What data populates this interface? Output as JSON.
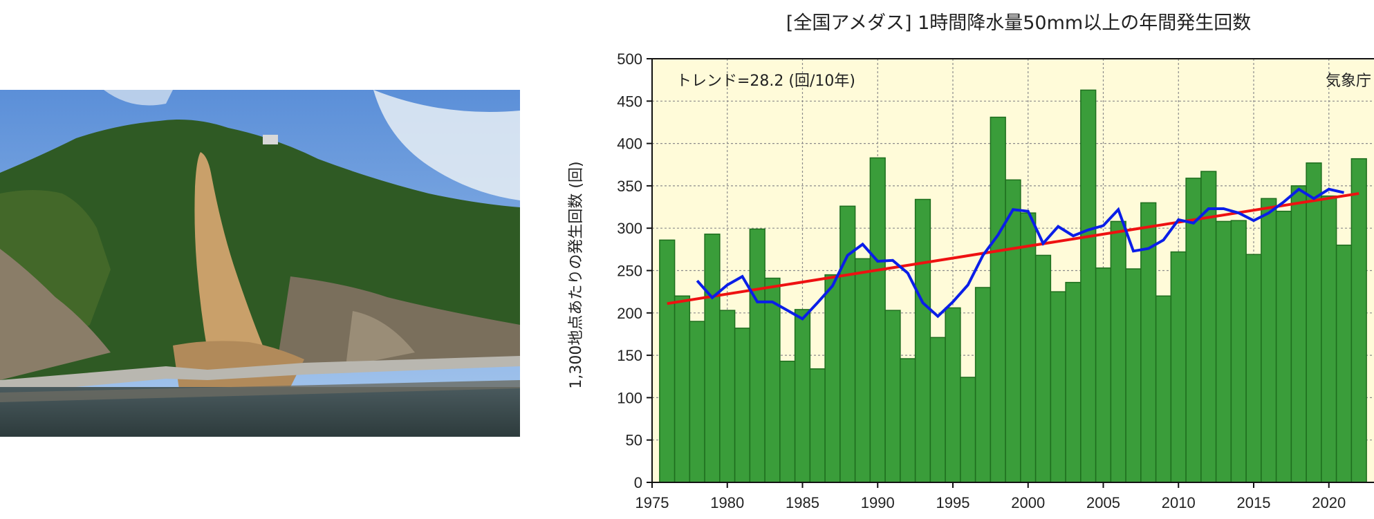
{
  "photo": {
    "description_icon": "landslide-photo"
  },
  "chart_data": {
    "type": "bar",
    "title": "[全国アメダス] 1時間降水量50mm以上の年間発生回数",
    "ylabel": "1,300地点あたりの発生回数 (回)",
    "xlabel": "",
    "trend_label": "トレンド=28.2 (回/10年)",
    "source_label": "気象庁",
    "ylim": [
      0,
      500
    ],
    "xlim": [
      1975,
      2023
    ],
    "y_ticks": [
      0,
      50,
      100,
      150,
      200,
      250,
      300,
      350,
      400,
      450,
      500
    ],
    "x_ticks": [
      1975,
      1980,
      1985,
      1990,
      1995,
      2000,
      2005,
      2010,
      2015,
      2020
    ],
    "grid": true,
    "colors": {
      "bar_fill": "#3a9d3a",
      "bar_stroke": "#1e6e1e",
      "moving_average": "#0a1ee8",
      "trend": "#ee1111",
      "plot_bg": "#fffbd9"
    },
    "years": [
      1976,
      1977,
      1978,
      1979,
      1980,
      1981,
      1982,
      1983,
      1984,
      1985,
      1986,
      1987,
      1988,
      1989,
      1990,
      1991,
      1992,
      1993,
      1994,
      1995,
      1996,
      1997,
      1998,
      1999,
      2000,
      2001,
      2002,
      2003,
      2004,
      2005,
      2006,
      2007,
      2008,
      2009,
      2010,
      2011,
      2012,
      2013,
      2014,
      2015,
      2016,
      2017,
      2018,
      2019,
      2020,
      2021,
      2022
    ],
    "values": [
      286,
      220,
      190,
      293,
      203,
      182,
      299,
      241,
      143,
      204,
      134,
      245,
      326,
      264,
      383,
      203,
      146,
      334,
      171,
      206,
      124,
      230,
      431,
      357,
      318,
      268,
      225,
      236,
      463,
      253,
      308,
      252,
      330,
      220,
      272,
      359,
      367,
      308,
      309,
      269,
      335,
      320,
      350,
      377,
      338,
      280,
      382
    ],
    "moving_average": {
      "years": [
        1978,
        1979,
        1980,
        1981,
        1982,
        1983,
        1984,
        1985,
        1986,
        1987,
        1988,
        1989,
        1990,
        1991,
        1992,
        1993,
        1994,
        1995,
        1996,
        1997,
        1998,
        1999,
        2000,
        2001,
        2002,
        2003,
        2004,
        2005,
        2006,
        2007,
        2008,
        2009,
        2010,
        2011,
        2012,
        2013,
        2014,
        2015,
        2016,
        2017,
        2018,
        2019,
        2020,
        2021
      ],
      "values": [
        238,
        218,
        233,
        243,
        213,
        213,
        203,
        193,
        212,
        232,
        268,
        281,
        261,
        262,
        247,
        212,
        196,
        213,
        233,
        268,
        292,
        322,
        320,
        282,
        302,
        291,
        298,
        303,
        322,
        273,
        276,
        286,
        310,
        306,
        323,
        323,
        318,
        309,
        318,
        331,
        346,
        335,
        346,
        342
      ]
    },
    "trend_line": {
      "x": [
        1976,
        2022
      ],
      "y": [
        211,
        341
      ]
    }
  }
}
